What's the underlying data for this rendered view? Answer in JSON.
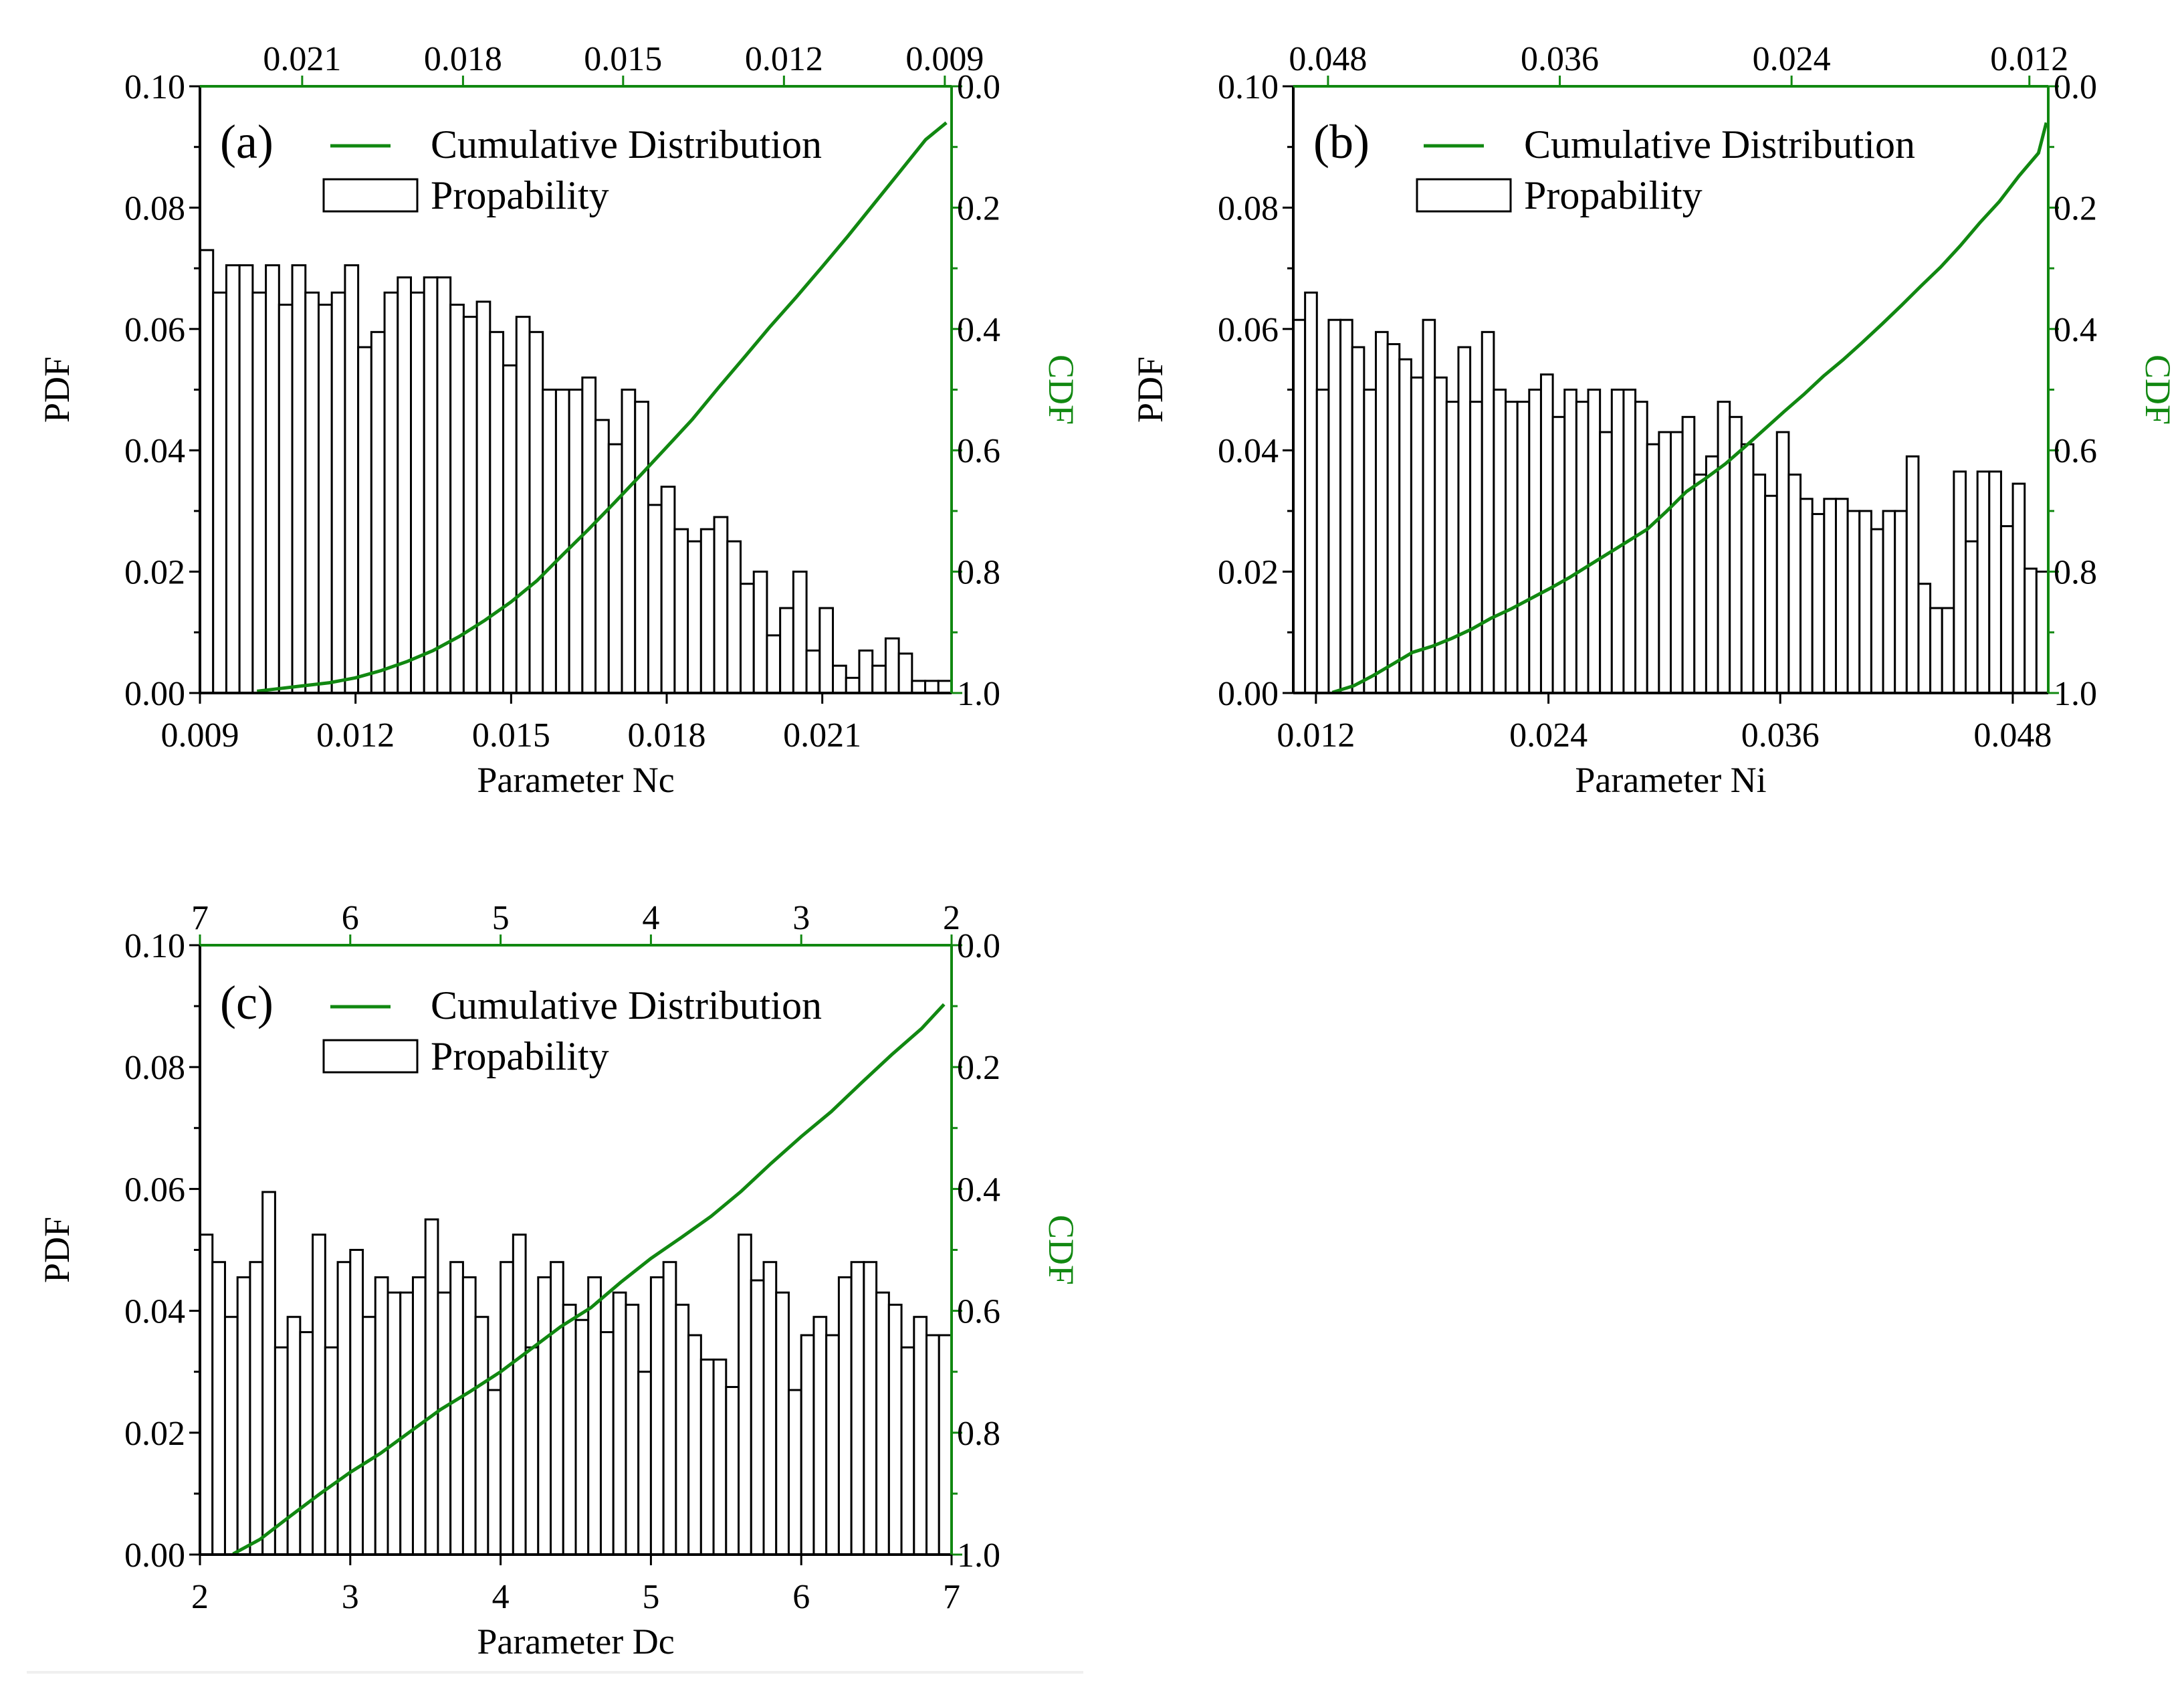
{
  "colors": {
    "cdf": "#118811",
    "bars": "#000000",
    "axis": "#000000"
  },
  "chart_data": [
    {
      "panel": "(a)",
      "type": "bar",
      "overlay": "line",
      "xlabel": "Parameter Nc",
      "ylabel": "PDF",
      "y2label": "CDF",
      "xlim": [
        0.009,
        0.0235
      ],
      "xticks": [
        "0.009",
        "0.012",
        "0.015",
        "0.018",
        "0.021"
      ],
      "top_xticks": [
        "0.021",
        "0.018",
        "0.015",
        "0.012",
        "0.009"
      ],
      "ylim": [
        0,
        0.1
      ],
      "yticks": [
        "0.00",
        "0.02",
        "0.04",
        "0.06",
        "0.08",
        "0.10"
      ],
      "y2lim": [
        1.0,
        0.0
      ],
      "y2ticks": [
        "0.0",
        "0.2",
        "0.4",
        "0.6",
        "0.8",
        "1.0"
      ],
      "legend": {
        "line": "Cumulative Distribution",
        "bars": "Propability",
        "position": "top"
      },
      "bin_start": 0.009,
      "bin_width": 0.000288,
      "values": [
        0.073,
        0.066,
        0.0705,
        0.0705,
        0.066,
        0.0705,
        0.064,
        0.0705,
        0.066,
        0.064,
        0.066,
        0.0705,
        0.057,
        0.0595,
        0.066,
        0.0685,
        0.066,
        0.0685,
        0.0685,
        0.064,
        0.062,
        0.0645,
        0.0595,
        0.054,
        0.062,
        0.0595,
        0.05,
        0.05,
        0.05,
        0.052,
        0.045,
        0.041,
        0.05,
        0.048,
        0.031,
        0.034,
        0.027,
        0.025,
        0.027,
        0.029,
        0.025,
        0.018,
        0.02,
        0.0095,
        0.014,
        0.02,
        0.007,
        0.014,
        0.0045,
        0.0025,
        0.007,
        0.0045,
        0.009,
        0.0065,
        0.002,
        0.002,
        0.002
      ],
      "cdf_x": [
        0.0101,
        0.0105,
        0.011,
        0.0115,
        0.012,
        0.0125,
        0.013,
        0.0135,
        0.014,
        0.0145,
        0.015,
        0.0155,
        0.016,
        0.0165,
        0.017,
        0.0175,
        0.018,
        0.0185,
        0.019,
        0.0195,
        0.02,
        0.0205,
        0.021,
        0.0215,
        0.022,
        0.0225,
        0.023,
        0.0234
      ],
      "cdf_y": [
        0.997,
        0.993,
        0.988,
        0.983,
        0.975,
        0.963,
        0.948,
        0.93,
        0.907,
        0.88,
        0.85,
        0.815,
        0.772,
        0.73,
        0.686,
        0.641,
        0.595,
        0.549,
        0.497,
        0.447,
        0.396,
        0.348,
        0.298,
        0.247,
        0.194,
        0.141,
        0.088,
        0.06
      ]
    },
    {
      "panel": "(b)",
      "type": "bar",
      "overlay": "line",
      "xlabel": "Parameter Ni",
      "ylabel": "PDF",
      "y2label": "CDF",
      "xlim": [
        0.0109,
        0.0495
      ],
      "xticks": [
        "0.012",
        "0.024",
        "0.036",
        "0.048"
      ],
      "top_xticks": [
        "0.048",
        "0.036",
        "0.024",
        "0.012"
      ],
      "ylim": [
        0,
        0.1
      ],
      "yticks": [
        "0.00",
        "0.02",
        "0.04",
        "0.06",
        "0.08",
        "0.10"
      ],
      "y2lim": [
        1.0,
        0.0
      ],
      "y2ticks": [
        "0.0",
        "0.2",
        "0.4",
        "0.6",
        "0.8",
        "1.0"
      ],
      "legend": {
        "line": "Cumulative Distribution",
        "bars": "Propability",
        "position": "top"
      },
      "bin_start": 0.0109,
      "bin_width": 0.000777,
      "values": [
        0.0615,
        0.066,
        0.05,
        0.0615,
        0.0615,
        0.057,
        0.05,
        0.0595,
        0.0575,
        0.055,
        0.052,
        0.0615,
        0.052,
        0.048,
        0.057,
        0.048,
        0.0595,
        0.05,
        0.048,
        0.048,
        0.05,
        0.0525,
        0.0455,
        0.05,
        0.048,
        0.05,
        0.043,
        0.05,
        0.05,
        0.048,
        0.041,
        0.043,
        0.043,
        0.0455,
        0.036,
        0.039,
        0.048,
        0.0455,
        0.041,
        0.036,
        0.0325,
        0.043,
        0.036,
        0.032,
        0.0295,
        0.032,
        0.032,
        0.03,
        0.03,
        0.027,
        0.03,
        0.03,
        0.039,
        0.018,
        0.014,
        0.014,
        0.0365,
        0.025,
        0.0365,
        0.0365,
        0.0275,
        0.0345,
        0.0205,
        0.02
      ]
    },
    {
      "panel": "(c)",
      "type": "bar",
      "overlay": "line",
      "xlabel": "Parameter Dc",
      "ylabel": "PDF",
      "y2label": "CDF",
      "xlim": [
        2,
        7
      ],
      "xticks": [
        "2",
        "3",
        "4",
        "5",
        "6",
        "7"
      ],
      "top_xticks": [
        "7",
        "6",
        "5",
        "4",
        "3",
        "2"
      ],
      "ylim": [
        0,
        0.1
      ],
      "yticks": [
        "0.00",
        "0.02",
        "0.04",
        "0.06",
        "0.08",
        "0.10"
      ],
      "y2lim": [
        1.0,
        0.0
      ],
      "y2ticks": [
        "0.0",
        "0.2",
        "0.4",
        "0.6",
        "0.8",
        "1.0"
      ],
      "legend": {
        "line": "Cumulative Distribution",
        "bars": "Propability",
        "position": "top"
      },
      "bin_start": 2.0,
      "bin_width": 0.1,
      "values": [
        0.0525,
        0.048,
        0.039,
        0.0455,
        0.048,
        0.0595,
        0.034,
        0.039,
        0.0365,
        0.0525,
        0.034,
        0.048,
        0.05,
        0.039,
        0.0455,
        0.043,
        0.043,
        0.0455,
        0.055,
        0.043,
        0.048,
        0.0455,
        0.039,
        0.027,
        0.048,
        0.0525,
        0.034,
        0.0455,
        0.048,
        0.041,
        0.0385,
        0.0455,
        0.0365,
        0.043,
        0.041,
        0.03,
        0.0455,
        0.048,
        0.041,
        0.036,
        0.032,
        0.032,
        0.0275,
        0.0525,
        0.045,
        0.048,
        0.043,
        0.027,
        0.036,
        0.039,
        0.036,
        0.0455,
        0.048,
        0.048,
        0.043,
        0.041,
        0.034,
        0.039,
        0.036,
        0.036
      ],
      "cdf_x": [
        2.22,
        2.4,
        2.6,
        2.8,
        3.0,
        3.2,
        3.4,
        3.6,
        3.8,
        4.0,
        4.2,
        4.4,
        4.6,
        4.8,
        5.0,
        5.2,
        5.4,
        5.6,
        5.8,
        6.0,
        6.2,
        6.4,
        6.6,
        6.8,
        6.95
      ],
      "cdf_y": [
        0.999,
        0.975,
        0.937,
        0.9,
        0.865,
        0.834,
        0.798,
        0.762,
        0.732,
        0.7,
        0.663,
        0.626,
        0.595,
        0.553,
        0.514,
        0.48,
        0.445,
        0.404,
        0.358,
        0.314,
        0.273,
        0.226,
        0.18,
        0.137,
        0.097
      ]
    }
  ],
  "cdf_b": {
    "x": [
      0.0129,
      0.014,
      0.015,
      0.016,
      0.017,
      0.018,
      0.019,
      0.02,
      0.021,
      0.022,
      0.023,
      0.024,
      0.025,
      0.026,
      0.027,
      0.028,
      0.029,
      0.03,
      0.031,
      0.032,
      0.033,
      0.034,
      0.035,
      0.036,
      0.037,
      0.038,
      0.039,
      0.04,
      0.041,
      0.042,
      0.043,
      0.044,
      0.045,
      0.046,
      0.047,
      0.048,
      0.049,
      0.0494
    ],
    "y": [
      0.999,
      0.988,
      0.971,
      0.952,
      0.933,
      0.923,
      0.91,
      0.895,
      0.877,
      0.862,
      0.845,
      0.828,
      0.81,
      0.79,
      0.77,
      0.75,
      0.73,
      0.7,
      0.668,
      0.646,
      0.622,
      0.594,
      0.565,
      0.536,
      0.508,
      0.478,
      0.451,
      0.422,
      0.392,
      0.361,
      0.329,
      0.298,
      0.263,
      0.225,
      0.19,
      0.148,
      0.11,
      0.06
    ]
  }
}
